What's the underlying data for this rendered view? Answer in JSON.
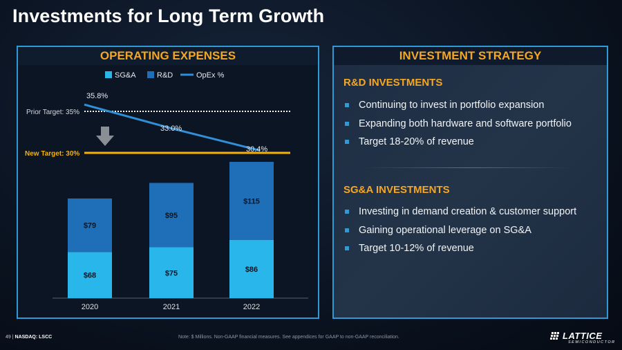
{
  "title": "Investments for Long Term Growth",
  "left_panel": {
    "header": "OPERATING EXPENSES"
  },
  "right_panel": {
    "header": "INVESTMENT STRATEGY",
    "sections": [
      {
        "title": "R&D INVESTMENTS",
        "bullets": [
          "Continuing to invest in portfolio expansion",
          "Expanding both hardware and software portfolio",
          "Target 18-20% of revenue"
        ]
      },
      {
        "title": "SG&A INVESTMENTS",
        "bullets": [
          "Investing in demand creation & customer support",
          "Gaining operational leverage on SG&A",
          "Target 10-12% of revenue"
        ]
      }
    ]
  },
  "chart_data": {
    "type": "bar",
    "stacked": true,
    "categories": [
      "2020",
      "2021",
      "2022"
    ],
    "series": [
      {
        "name": "SG&A",
        "values": [
          68,
          75,
          86
        ],
        "labels": [
          "$68",
          "$75",
          "$86"
        ],
        "color": "#29b6ea"
      },
      {
        "name": "R&D",
        "values": [
          79,
          95,
          115
        ],
        "labels": [
          "$79",
          "$95",
          "$115"
        ],
        "color": "#1f6fb8"
      }
    ],
    "line": {
      "name": "OpEx %",
      "values": [
        35.8,
        33.0,
        30.4
      ],
      "labels": [
        "35.8%",
        "33.0%",
        "30.4%"
      ],
      "color": "#2f8fd8"
    },
    "reference_lines": [
      {
        "label": "Prior Target: 35%",
        "value": 35,
        "style": "dotted",
        "color": "#ffffff"
      },
      {
        "label": "New Target: 30%",
        "value": 30,
        "style": "solid",
        "color": "#f5b10a"
      }
    ],
    "legend": [
      "SG&A",
      "R&D",
      "OpEx %"
    ],
    "legend_position": "top"
  },
  "footer": {
    "page": "49",
    "separator": "|",
    "ticker": "NASDAQ: LSCC",
    "note": "Note: $ Millions. Non-GAAP financial measures. See appendices for GAAP to non-GAAP reconciliation."
  },
  "logo": {
    "word": "LATTICE",
    "sub": "SEMICONDUCTOR"
  }
}
